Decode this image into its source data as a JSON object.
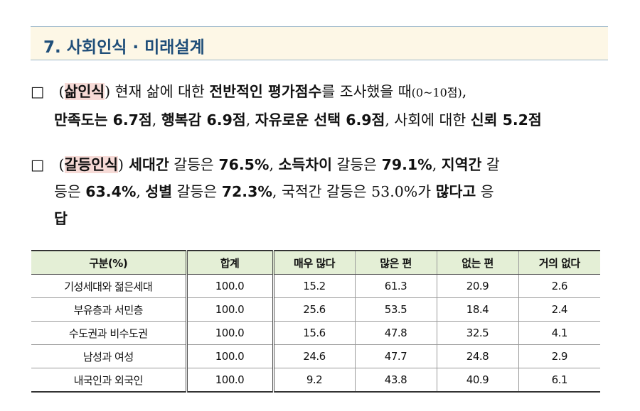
{
  "section": {
    "title": "7. 사회인식 · 미래설계"
  },
  "para1": {
    "bullet": "□",
    "open": " (",
    "kw": "삶인식",
    "close": ")",
    "t1": " 현재 삶에 대한 ",
    "b1": "전반적인 평가점수",
    "t2": "를 조사했을 때",
    "small": "(0~10점)",
    "t3": ",",
    "b2": "만족도는 6.7점",
    "t4": ", ",
    "b3": "행복감 6.9점",
    "t5": ", ",
    "b4": "자유로운 선택 6.9점",
    "t6": ", 사회에 대한 ",
    "b5": "신뢰 5.2점"
  },
  "para2": {
    "bullet": "□",
    "open": " (",
    "kw": "갈등인식",
    "close": ")",
    "b1": " 세대간",
    "t1": " 갈등은 ",
    "b2": "76.5%",
    "t2": ", ",
    "b3": "소득차이",
    "t3": " 갈등은 ",
    "b4": "79.1%",
    "t4": ", ",
    "b5": "지역간",
    "t5": " 갈",
    "t6": "등은 ",
    "b6": "63.4%",
    "t7": ", ",
    "b7": "성별",
    "t8": " 갈등은 ",
    "b8": "72.3%",
    "t9": ", 국적간 갈등은 53.0%가 ",
    "b9": "많다고",
    "t10": " 응",
    "t11": "답"
  },
  "table": {
    "headers": [
      "구분(%)",
      "합계",
      "매우 많다",
      "많은 편",
      "없는 편",
      "거의 없다"
    ],
    "rows": [
      [
        "기성세대와 젊은세대",
        "100.0",
        "15.2",
        "61.3",
        "20.9",
        "2.6"
      ],
      [
        "부유층과 서민층",
        "100.0",
        "25.6",
        "53.5",
        "18.4",
        "2.4"
      ],
      [
        "수도권과 비수도권",
        "100.0",
        "15.6",
        "47.8",
        "32.5",
        "4.1"
      ],
      [
        "남성과 여성",
        "100.0",
        "24.6",
        "47.7",
        "24.8",
        "2.9"
      ],
      [
        "내국인과 외국인",
        "100.0",
        "9.2",
        "43.8",
        "40.9",
        "6.1"
      ]
    ]
  }
}
